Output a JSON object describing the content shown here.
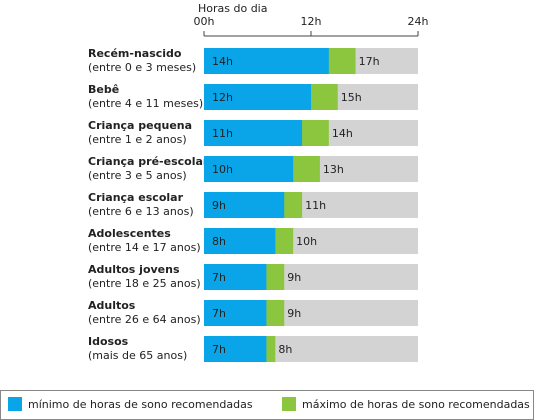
{
  "chart_data": {
    "type": "overlap-bar",
    "xlabel": "Horas do dia",
    "categories": [
      "Recém-nascido",
      "Bebê",
      "Criança pequena",
      "Criança pré-escolar",
      "Criança escolar",
      "Adolescentes",
      "Adultos jovens",
      "Adultos",
      "Idosos"
    ],
    "category_notes": [
      "(entre 0 e 3 meses)",
      "(entre 4 e 11 meses)",
      "(entre 1 e 2 anos)",
      "(entre 3 e 5 anos)",
      "(entre 6 e 13 anos)",
      "(entre 14 e 17 anos)",
      "(entre 18 e 25 anos)",
      "(entre 26 e 64 anos)",
      "(mais de 65 anos)"
    ],
    "xlim": [
      0,
      24
    ],
    "xticks": [
      {
        "value": 0,
        "label": "00h"
      },
      {
        "value": 12,
        "label": "12h"
      },
      {
        "value": 24,
        "label": "24h"
      }
    ],
    "series": [
      {
        "name": "máximo de horas de sono recomendadas",
        "color": "#8cc63f",
        "values": [
          17,
          15,
          14,
          13,
          11,
          10,
          9,
          9,
          8
        ],
        "value_labels": [
          "17h",
          "15h",
          "14h",
          "13h",
          "11h",
          "10h",
          "9h",
          "9h",
          "8h"
        ]
      },
      {
        "name": "mínimo de horas de sono recomendadas",
        "color": "#0aa5e8",
        "values": [
          14,
          12,
          11,
          10,
          9,
          8,
          7,
          7,
          7
        ],
        "value_labels": [
          "14h",
          "12h",
          "11h",
          "10h",
          "9h",
          "8h",
          "7h",
          "7h",
          "7h"
        ]
      }
    ],
    "legend_order": [
      1,
      0
    ]
  }
}
